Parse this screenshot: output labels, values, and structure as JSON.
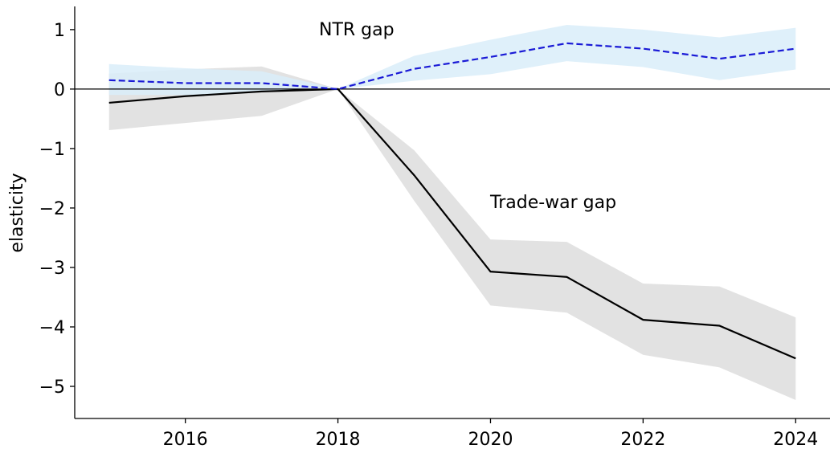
{
  "chart_data": {
    "type": "line",
    "y_label": "elasticity",
    "x": [
      2015,
      2016,
      2017,
      2018,
      2019,
      2020,
      2021,
      2022,
      2023,
      2024
    ],
    "series": [
      {
        "name": "Trade-war gap",
        "color": "#000000",
        "band_color": "#dddddd",
        "dash": false,
        "values": [
          -0.23,
          -0.12,
          -0.04,
          0,
          -1.45,
          -3.07,
          -3.16,
          -3.88,
          -3.98,
          -4.53
        ],
        "lower": [
          -0.69,
          -0.57,
          -0.45,
          0,
          -1.88,
          -3.64,
          -3.76,
          -4.47,
          -4.68,
          -5.23
        ],
        "upper": [
          0.26,
          0.33,
          0.38,
          0,
          -1.03,
          -2.53,
          -2.57,
          -3.27,
          -3.32,
          -3.84
        ]
      },
      {
        "name": "NTR gap",
        "color": "#1a1ad6",
        "band_color": "#d9edf9",
        "dash": true,
        "values": [
          0.15,
          0.1,
          0.1,
          0,
          0.34,
          0.54,
          0.77,
          0.68,
          0.51,
          0.68
        ],
        "lower": [
          -0.1,
          -0.1,
          -0.05,
          0,
          0.14,
          0.25,
          0.47,
          0.37,
          0.15,
          0.33
        ],
        "upper": [
          0.42,
          0.35,
          0.3,
          0,
          0.56,
          0.83,
          1.08,
          1.0,
          0.87,
          1.03
        ]
      }
    ],
    "xlim": [
      2014.55,
      2024.45
    ],
    "ylim": [
      -5.54,
      1.39
    ],
    "xticks": [
      2016,
      2018,
      2020,
      2022,
      2024
    ],
    "yticks": [
      1,
      0,
      {
        "value": -1,
        "label": "−1"
      },
      {
        "value": -2,
        "label": "−2"
      },
      {
        "value": -3,
        "label": "−3"
      },
      {
        "value": -4,
        "label": "−4"
      },
      {
        "value": -5,
        "label": "−5"
      }
    ],
    "zero_line": 0
  }
}
